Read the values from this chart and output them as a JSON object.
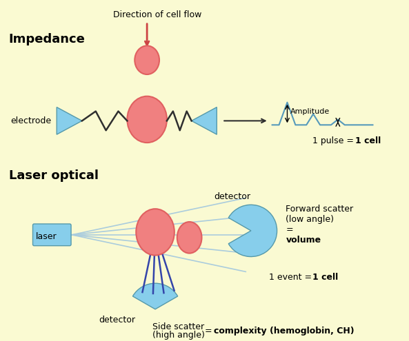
{
  "bg_color": "#FAFAD2",
  "title_impedance": "Impedance",
  "title_laser": "Laser optical",
  "cell_color": "#F08080",
  "cell_edge_color": "#E06060",
  "detector_color": "#87CEEB",
  "wire_color": "#2F2F2F",
  "arrow_color": "#CC4444",
  "signal_color": "#5599BB",
  "scatter_line_color": "#AACCDD",
  "side_scatter_color": "#3344AA",
  "text_color": "#000000",
  "label_electrode": "electrode",
  "label_laser": "laser",
  "label_detector_top": "detector",
  "label_detector_bottom": "detector",
  "label_amplitude": "Amplitude",
  "label_flow": "Direction of cell flow"
}
